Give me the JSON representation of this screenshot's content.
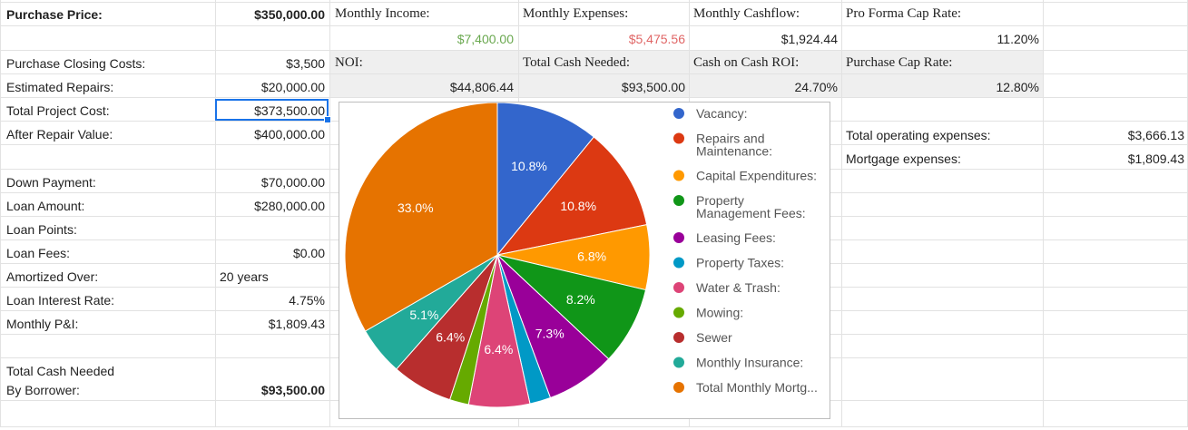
{
  "colors": {
    "grid_line": "#e2e2e2",
    "header_band": "#efefef",
    "income_green": "#6aa84f",
    "expense_red": "#e06666",
    "selection_blue": "#1a73e8"
  },
  "left_panel": {
    "purchase_price_label": "Purchase Price:",
    "purchase_price_value": "$350,000.00",
    "purchase_closing_costs_label": "Purchase Closing Costs:",
    "purchase_closing_costs_value": "$3,500",
    "estimated_repairs_label": "Estimated Repairs:",
    "estimated_repairs_value": "$20,000.00",
    "total_project_cost_label": "Total Project Cost:",
    "total_project_cost_value": "$373,500.00",
    "after_repair_value_label": "After Repair Value:",
    "after_repair_value_value": "$400,000.00",
    "down_payment_label": "Down Payment:",
    "down_payment_value": "$70,000.00",
    "loan_amount_label": "Loan Amount:",
    "loan_amount_value": "$280,000.00",
    "loan_points_label": "Loan Points:",
    "loan_fees_label": "Loan Fees:",
    "loan_fees_value": "$0.00",
    "amortized_over_label": "Amortized Over:",
    "amortized_over_value": "20 years",
    "loan_interest_rate_label": "Loan Interest Rate:",
    "loan_interest_rate_value": "4.75%",
    "monthly_pi_label": "Monthly P&I:",
    "monthly_pi_value": "$1,809.43",
    "total_cash_needed_label_1": "Total Cash Needed",
    "total_cash_needed_label_2": "By Borrower:",
    "total_cash_needed_value": "$93,500.00"
  },
  "summary": {
    "monthly_income_label": "Monthly Income:",
    "monthly_income_value": "$7,400.00",
    "monthly_expenses_label": "Monthly Expenses:",
    "monthly_expenses_value": "$5,475.56",
    "monthly_cashflow_label": "Monthly Cashflow:",
    "monthly_cashflow_value": "$1,924.44",
    "pro_forma_cap_rate_label": "Pro Forma Cap Rate:",
    "pro_forma_cap_rate_value": "11.20%",
    "noi_label": "NOI:",
    "noi_value": "$44,806.44",
    "total_cash_needed_label": "Total Cash Needed:",
    "total_cash_needed_value": "$93,500.00",
    "cash_on_cash_roi_label": "Cash on Cash ROI:",
    "cash_on_cash_roi_value": "24.70%",
    "purchase_cap_rate_label": "Purchase Cap Rate:",
    "purchase_cap_rate_value": "12.80%"
  },
  "right_panel": {
    "total_operating_expenses_label": "Total operating expenses:",
    "total_operating_expenses_value": "$3,666.13",
    "mortgage_expenses_label": "Mortgage expenses:",
    "mortgage_expenses_value": "$1,809.43"
  },
  "chart_data": {
    "type": "pie",
    "legend_position": "right",
    "slices": [
      {
        "label": "Vacancy:",
        "value": 10.8,
        "display": "10.8%",
        "color": "#3366cc"
      },
      {
        "label": "Repairs and Maintenance:",
        "lines": [
          "Repairs and",
          "Maintenance:"
        ],
        "value": 10.8,
        "display": "10.8%",
        "color": "#dc3912"
      },
      {
        "label": "Capital Expenditures:",
        "value": 6.8,
        "display": "6.8%",
        "color": "#ff9900"
      },
      {
        "label": "Property Management Fees:",
        "lines": [
          "Property",
          "Management Fees:"
        ],
        "value": 8.2,
        "display": "8.2%",
        "color": "#109618"
      },
      {
        "label": "Leasing Fees:",
        "value": 7.3,
        "display": "7.3%",
        "color": "#990099"
      },
      {
        "label": "Property Taxes:",
        "value": 2.2,
        "display": "",
        "color": "#0099c6"
      },
      {
        "label": "Water & Trash:",
        "value": 6.4,
        "display": "6.4%",
        "color": "#dd4477"
      },
      {
        "label": "Mowing:",
        "value": 2.0,
        "display": "",
        "color": "#66aa00"
      },
      {
        "label": "Sewer",
        "value": 6.4,
        "display": "6.4%",
        "color": "#b82e2e"
      },
      {
        "label": "Monthly Insurance:",
        "value": 5.1,
        "display": "5.1%",
        "color": "#22aa99"
      },
      {
        "label": "Total Monthly Mortg...",
        "value": 33.0,
        "display": "33.0%",
        "color": "#e67300"
      }
    ]
  }
}
